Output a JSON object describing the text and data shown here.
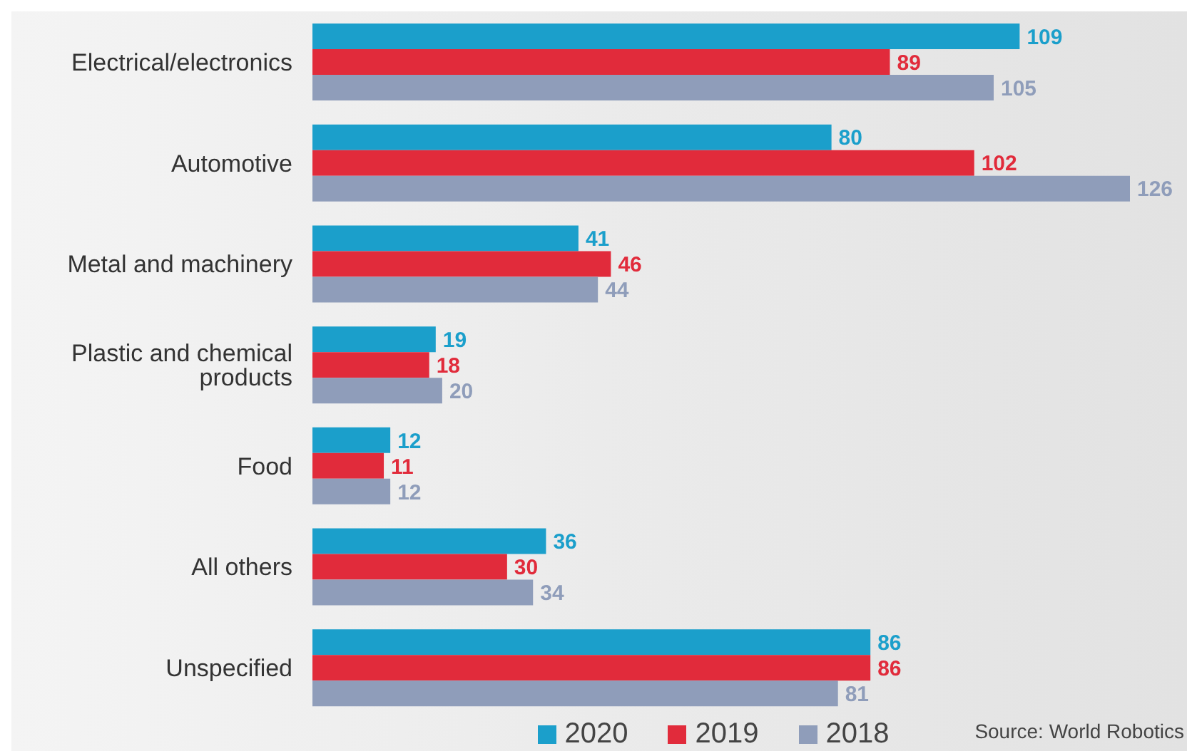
{
  "chart_data": {
    "type": "bar",
    "orientation": "horizontal",
    "categories": [
      "Electrical/electronics",
      "Automotive",
      "Metal and machinery",
      "Plastic and chemical products",
      "Food",
      "All others",
      "Unspecified"
    ],
    "series": [
      {
        "name": "2020",
        "color": "#1b9fcb",
        "values": [
          109,
          80,
          41,
          19,
          12,
          36,
          86
        ]
      },
      {
        "name": "2019",
        "color": "#e12b3b",
        "values": [
          89,
          102,
          46,
          18,
          11,
          30,
          86
        ]
      },
      {
        "name": "2018",
        "color": "#8f9dba",
        "values": [
          105,
          126,
          44,
          20,
          12,
          34,
          81
        ]
      }
    ],
    "data_labels": true,
    "legend": "bottom",
    "annotations": [
      "Source: World Robotics"
    ]
  }
}
